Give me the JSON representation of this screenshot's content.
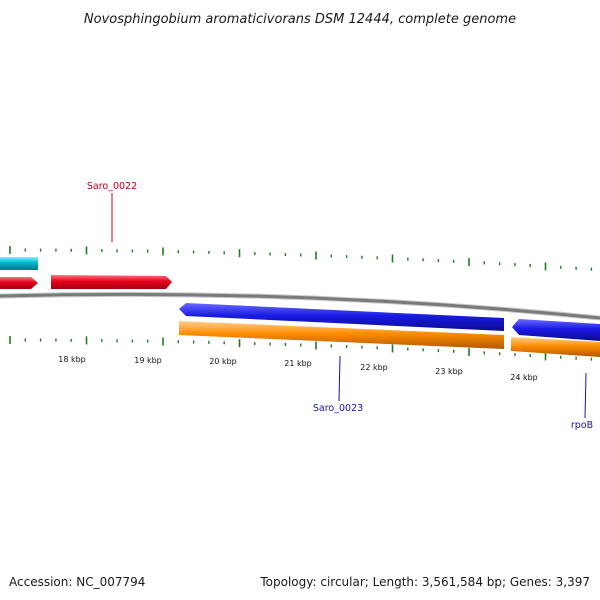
{
  "title": "Novosphingobium aromaticivorans DSM 12444, complete genome",
  "footer": {
    "accession": "Accession: NC_007794",
    "summary": "Topology: circular; Length: 3,561,584 bp; Genes: 3,397"
  },
  "scale_labels": [
    "18 kbp",
    "19 kbp",
    "20 kbp",
    "21 kbp",
    "22 kbp",
    "23 kbp",
    "24 kbp"
  ],
  "gene_labels": [
    {
      "name": "label-saro-0022",
      "text": "Saro_0022",
      "color": "#c0001a"
    },
    {
      "name": "label-saro-0023",
      "text": "Saro_0023",
      "color": "#1414b4"
    },
    {
      "name": "label-rpob",
      "text": "rpoB",
      "color": "#1414b4"
    }
  ],
  "colors": {
    "forward_cds": "#e8001c",
    "forward_other": "#00b4c8",
    "reverse_cds": "#1a1ae6",
    "reverse_gene": "#ff8c00",
    "backbone": "#888888",
    "ticks": "#1e7d1e"
  }
}
